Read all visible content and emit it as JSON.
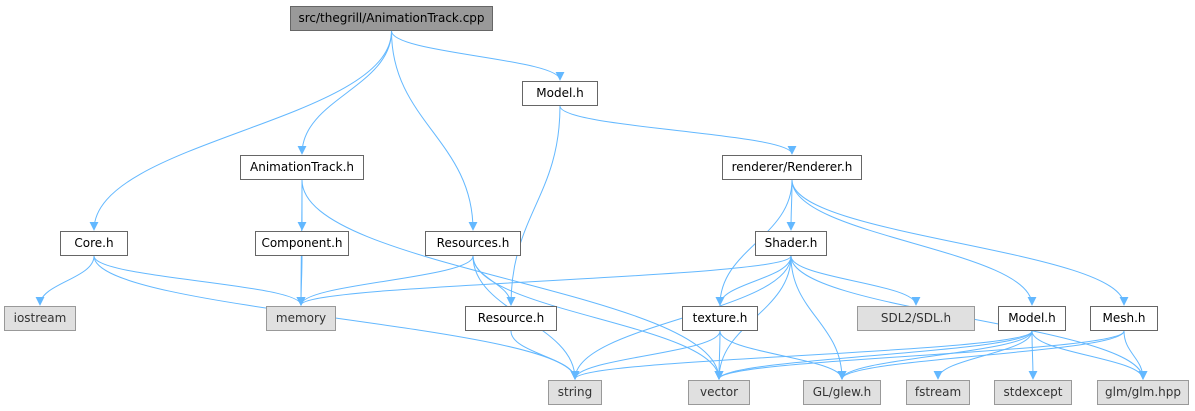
{
  "colors": {
    "edge": "#63b8ff",
    "node_border": "#666666",
    "root_fill": "#999999",
    "external_fill": "#e0e0e0",
    "external_border": "#999999"
  },
  "nodes": [
    {
      "id": "root",
      "label": "src/thegrill/AnimationTrack.cpp",
      "kind": "root"
    },
    {
      "id": "model_h",
      "label": "Model.h",
      "kind": "file"
    },
    {
      "id": "animtrack_h",
      "label": "AnimationTrack.h",
      "kind": "file"
    },
    {
      "id": "renderer_h",
      "label": "renderer/Renderer.h",
      "kind": "file"
    },
    {
      "id": "core_h",
      "label": "Core.h",
      "kind": "file"
    },
    {
      "id": "component_h",
      "label": "Component.h",
      "kind": "file"
    },
    {
      "id": "resources_h",
      "label": "Resources.h",
      "kind": "file"
    },
    {
      "id": "shader_h",
      "label": "Shader.h",
      "kind": "file"
    },
    {
      "id": "iostream",
      "label": "iostream",
      "kind": "external"
    },
    {
      "id": "memory",
      "label": "memory",
      "kind": "external"
    },
    {
      "id": "resource_h",
      "label": "Resource.h",
      "kind": "file"
    },
    {
      "id": "texture_h",
      "label": "texture.h",
      "kind": "file"
    },
    {
      "id": "sdl_h",
      "label": "SDL2/SDL.h",
      "kind": "external"
    },
    {
      "id": "model2_h",
      "label": "Model.h",
      "kind": "file"
    },
    {
      "id": "mesh_h",
      "label": "Mesh.h",
      "kind": "file"
    },
    {
      "id": "string",
      "label": "string",
      "kind": "external"
    },
    {
      "id": "vector",
      "label": "vector",
      "kind": "external"
    },
    {
      "id": "glew_h",
      "label": "GL/glew.h",
      "kind": "external"
    },
    {
      "id": "fstream",
      "label": "fstream",
      "kind": "external"
    },
    {
      "id": "stdexcept",
      "label": "stdexcept",
      "kind": "external"
    },
    {
      "id": "glm_hpp",
      "label": "glm/glm.hpp",
      "kind": "external"
    }
  ],
  "edges": [
    [
      "root",
      "model_h"
    ],
    [
      "root",
      "animtrack_h"
    ],
    [
      "root",
      "core_h"
    ],
    [
      "root",
      "resources_h"
    ],
    [
      "model_h",
      "renderer_h"
    ],
    [
      "model_h",
      "resource_h"
    ],
    [
      "animtrack_h",
      "component_h"
    ],
    [
      "animtrack_h",
      "memory"
    ],
    [
      "animtrack_h",
      "vector"
    ],
    [
      "core_h",
      "iostream"
    ],
    [
      "core_h",
      "memory"
    ],
    [
      "core_h",
      "string"
    ],
    [
      "component_h",
      "memory"
    ],
    [
      "resources_h",
      "memory"
    ],
    [
      "resources_h",
      "resource_h"
    ],
    [
      "resources_h",
      "string"
    ],
    [
      "resources_h",
      "vector"
    ],
    [
      "renderer_h",
      "shader_h"
    ],
    [
      "renderer_h",
      "texture_h"
    ],
    [
      "renderer_h",
      "model2_h"
    ],
    [
      "renderer_h",
      "mesh_h"
    ],
    [
      "shader_h",
      "memory"
    ],
    [
      "shader_h",
      "texture_h"
    ],
    [
      "shader_h",
      "sdl_h"
    ],
    [
      "shader_h",
      "string"
    ],
    [
      "shader_h",
      "vector"
    ],
    [
      "shader_h",
      "glew_h"
    ],
    [
      "shader_h",
      "glm_hpp"
    ],
    [
      "resource_h",
      "string"
    ],
    [
      "texture_h",
      "string"
    ],
    [
      "texture_h",
      "vector"
    ],
    [
      "texture_h",
      "glew_h"
    ],
    [
      "model2_h",
      "string"
    ],
    [
      "model2_h",
      "vector"
    ],
    [
      "model2_h",
      "glew_h"
    ],
    [
      "model2_h",
      "fstream"
    ],
    [
      "model2_h",
      "stdexcept"
    ],
    [
      "model2_h",
      "glm_hpp"
    ],
    [
      "mesh_h",
      "vector"
    ],
    [
      "mesh_h",
      "glew_h"
    ],
    [
      "mesh_h",
      "glm_hpp"
    ]
  ]
}
